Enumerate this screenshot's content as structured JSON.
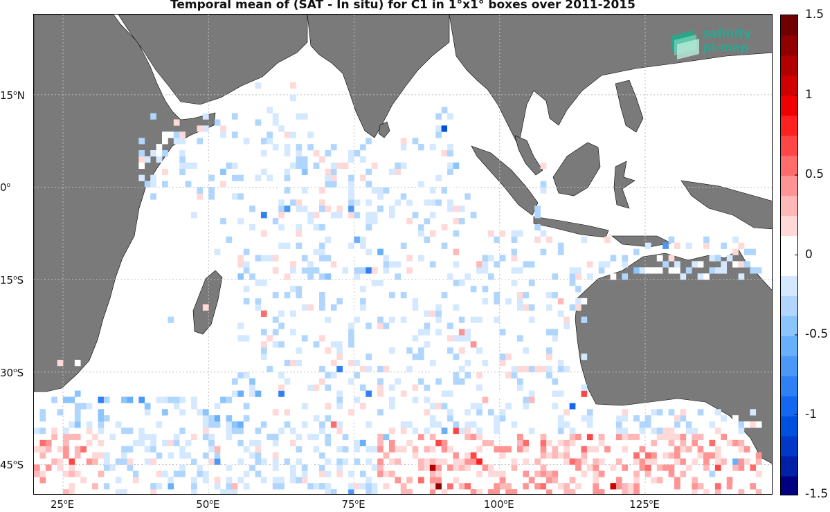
{
  "title": "Temporal mean of (SAT - In situ) for C1 in 1°x1° boxes over 2011-2015",
  "map": {
    "lon_range": [
      20,
      147
    ],
    "lat_range": [
      -50,
      28
    ],
    "land_color": "#7a7a7a",
    "grid": true,
    "lat_ticks": [
      {
        "value": 15,
        "label_num": "15",
        "deg": "o",
        "hemi": "N"
      },
      {
        "value": 0,
        "label_num": "0",
        "deg": "o",
        "hemi": ""
      },
      {
        "value": -15,
        "label_num": "15",
        "deg": "o",
        "hemi": "S"
      },
      {
        "value": -30,
        "label_num": "30",
        "deg": "o",
        "hemi": "S"
      },
      {
        "value": -45,
        "label_num": "45",
        "deg": "o",
        "hemi": "S"
      }
    ],
    "lon_ticks": [
      {
        "value": 25,
        "label_num": "25",
        "deg": "o",
        "hemi": "E"
      },
      {
        "value": 50,
        "label_num": "50",
        "deg": "o",
        "hemi": "E"
      },
      {
        "value": 75,
        "label_num": "75",
        "deg": "o",
        "hemi": "E"
      },
      {
        "value": 100,
        "label_num": "100",
        "deg": "o",
        "hemi": "E"
      },
      {
        "value": 125,
        "label_num": "125",
        "deg": "o",
        "hemi": "E"
      }
    ]
  },
  "colorbar": {
    "min": -1.5,
    "max": 1.5,
    "ticks": [
      "1.5",
      "1",
      "0.5",
      "0",
      "-0.5",
      "-1",
      "-1.5"
    ],
    "colors": [
      "#000080",
      "#0020a8",
      "#0038c8",
      "#0050e0",
      "#1468f0",
      "#3080f5",
      "#4c98f8",
      "#68b0fa",
      "#8cc4fc",
      "#b0d6fe",
      "#d4e8ff",
      "#ffffff",
      "#ffffff",
      "#ffd8d8",
      "#ffb8b8",
      "#ff9494",
      "#ff6c6c",
      "#ff4646",
      "#ff2020",
      "#f00000",
      "#d00000",
      "#b00000",
      "#900000",
      "#700000"
    ]
  },
  "logo": {
    "line1": "salinity",
    "line2": "pi-mep"
  }
}
